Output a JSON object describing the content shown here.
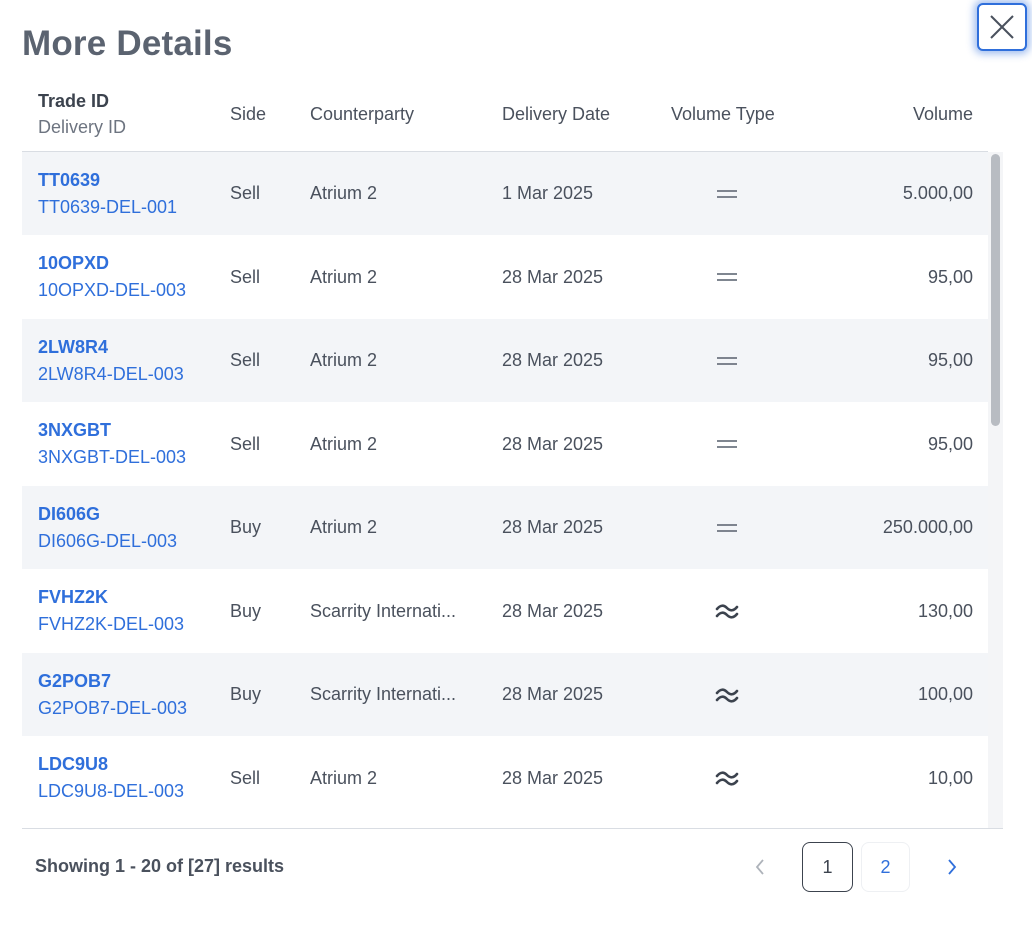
{
  "modal": {
    "title": "More Details"
  },
  "columns": {
    "trade_id": "Trade ID",
    "delivery_id": "Delivery ID",
    "side": "Side",
    "counterparty": "Counterparty",
    "delivery_date": "Delivery Date",
    "volume_type": "Volume Type",
    "volume": "Volume"
  },
  "volume_type_icons": {
    "fixed": "equals-icon",
    "approximate": "approx-icon"
  },
  "rows": [
    {
      "trade_id": "TT0639",
      "delivery_id": "TT0639-DEL-001",
      "side": "Sell",
      "counterparty": "Atrium 2",
      "delivery_date": "1 Mar 2025",
      "volume_type": "fixed",
      "volume": "5.000,00"
    },
    {
      "trade_id": "10OPXD",
      "delivery_id": "10OPXD-DEL-003",
      "side": "Sell",
      "counterparty": "Atrium 2",
      "delivery_date": "28 Mar 2025",
      "volume_type": "fixed",
      "volume": "95,00"
    },
    {
      "trade_id": "2LW8R4",
      "delivery_id": "2LW8R4-DEL-003",
      "side": "Sell",
      "counterparty": "Atrium 2",
      "delivery_date": "28 Mar 2025",
      "volume_type": "fixed",
      "volume": "95,00"
    },
    {
      "trade_id": "3NXGBT",
      "delivery_id": "3NXGBT-DEL-003",
      "side": "Sell",
      "counterparty": "Atrium 2",
      "delivery_date": "28 Mar 2025",
      "volume_type": "fixed",
      "volume": "95,00"
    },
    {
      "trade_id": "DI606G",
      "delivery_id": "DI606G-DEL-003",
      "side": "Buy",
      "counterparty": "Atrium 2",
      "delivery_date": "28 Mar 2025",
      "volume_type": "fixed",
      "volume": "250.000,00"
    },
    {
      "trade_id": "FVHZ2K",
      "delivery_id": "FVHZ2K-DEL-003",
      "side": "Buy",
      "counterparty": "Scarrity Internati...",
      "delivery_date": "28 Mar 2025",
      "volume_type": "approximate",
      "volume": "130,00"
    },
    {
      "trade_id": "G2POB7",
      "delivery_id": "G2POB7-DEL-003",
      "side": "Buy",
      "counterparty": "Scarrity Internati...",
      "delivery_date": "28 Mar 2025",
      "volume_type": "approximate",
      "volume": "100,00"
    },
    {
      "trade_id": "LDC9U8",
      "delivery_id": "LDC9U8-DEL-003",
      "side": "Sell",
      "counterparty": "Atrium 2",
      "delivery_date": "28 Mar 2025",
      "volume_type": "approximate",
      "volume": "10,00"
    }
  ],
  "footer": {
    "results_text": "Showing 1 - 20 of [27] results",
    "pages": [
      "1",
      "2"
    ],
    "current_page": "1"
  },
  "colors": {
    "link": "#2f6fdb",
    "row_alt": "#f3f5f8",
    "focus_ring": "#2f6fdb"
  }
}
